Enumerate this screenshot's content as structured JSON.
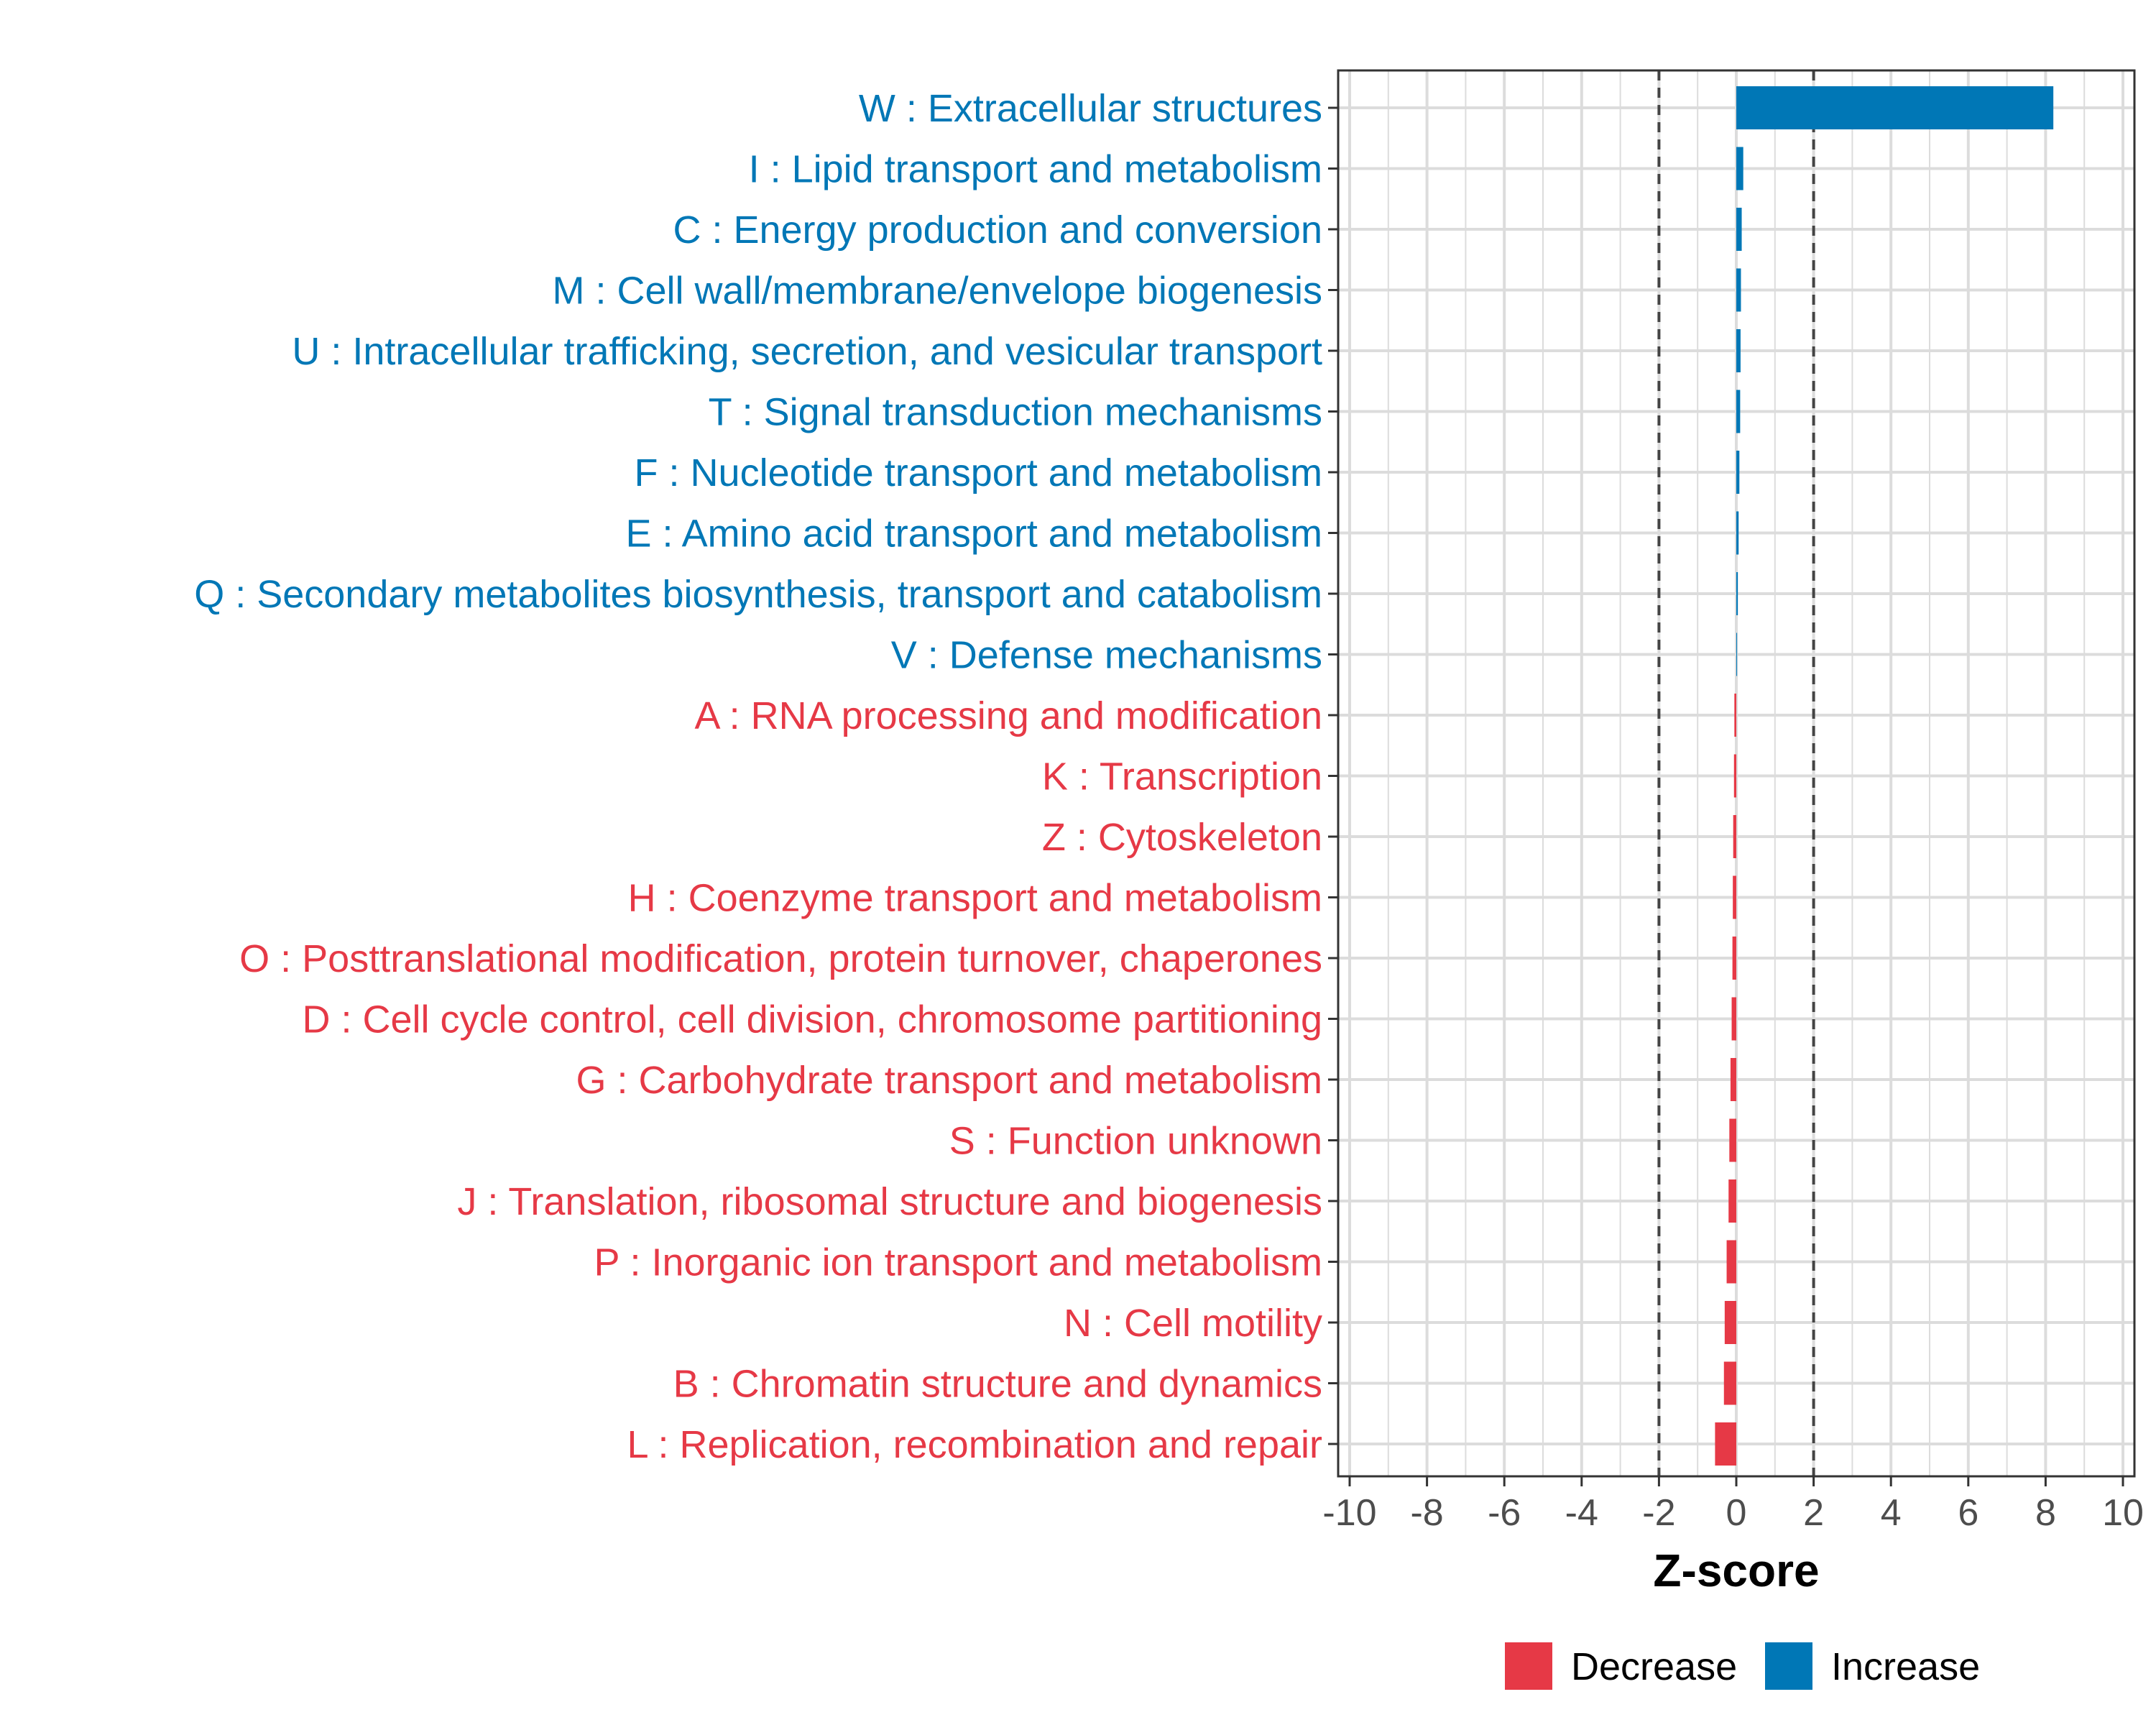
{
  "chart_data": {
    "type": "bar",
    "orientation": "horizontal",
    "xlabel": "Z-score",
    "ylabel": "",
    "xlim": [
      -10,
      10
    ],
    "xticks": [
      "-10",
      "-8",
      "-6",
      "-4",
      "-2",
      "0",
      "2",
      "4",
      "6",
      "8",
      "10"
    ],
    "threshold_lines": [
      -2,
      2
    ],
    "grid": true,
    "legend_position": "bottom",
    "legend": [
      {
        "name": "Decrease",
        "color": "#E63946"
      },
      {
        "name": "Increase",
        "color": "#0077B6"
      }
    ],
    "colors": {
      "Decrease": "#E63946",
      "Increase": "#0077B6"
    },
    "categories": [
      "W : Extracellular structures",
      "I : Lipid transport and metabolism",
      "C : Energy production and conversion",
      "M : Cell wall/membrane/envelope biogenesis",
      "U : Intracellular trafficking, secretion, and vesicular transport",
      "T : Signal transduction mechanisms",
      "F : Nucleotide transport and metabolism",
      "E : Amino acid transport and metabolism",
      "Q : Secondary metabolites biosynthesis, transport and catabolism",
      "V : Defense mechanisms",
      "A : RNA processing and modification",
      "K : Transcription",
      "Z : Cytoskeleton",
      "H : Coenzyme transport and metabolism",
      "O : Posttranslational modification, protein turnover, chaperones",
      "D : Cell cycle control, cell division, chromosome partitioning",
      "G : Carbohydrate transport and metabolism",
      "S : Function unknown",
      "J : Translation, ribosomal structure and biogenesis",
      "P : Inorganic ion transport and metabolism",
      "N : Cell motility",
      "B : Chromatin structure and dynamics",
      "L : Replication, recombination and repair"
    ],
    "values": [
      8.2,
      0.18,
      0.14,
      0.12,
      0.11,
      0.1,
      0.08,
      0.06,
      0.04,
      0.02,
      -0.05,
      -0.06,
      -0.08,
      -0.09,
      -0.1,
      -0.12,
      -0.15,
      -0.18,
      -0.2,
      -0.25,
      -0.3,
      -0.32,
      -0.55
    ],
    "groups": [
      "Increase",
      "Increase",
      "Increase",
      "Increase",
      "Increase",
      "Increase",
      "Increase",
      "Increase",
      "Increase",
      "Increase",
      "Decrease",
      "Decrease",
      "Decrease",
      "Decrease",
      "Decrease",
      "Decrease",
      "Decrease",
      "Decrease",
      "Decrease",
      "Decrease",
      "Decrease",
      "Decrease",
      "Decrease"
    ]
  }
}
